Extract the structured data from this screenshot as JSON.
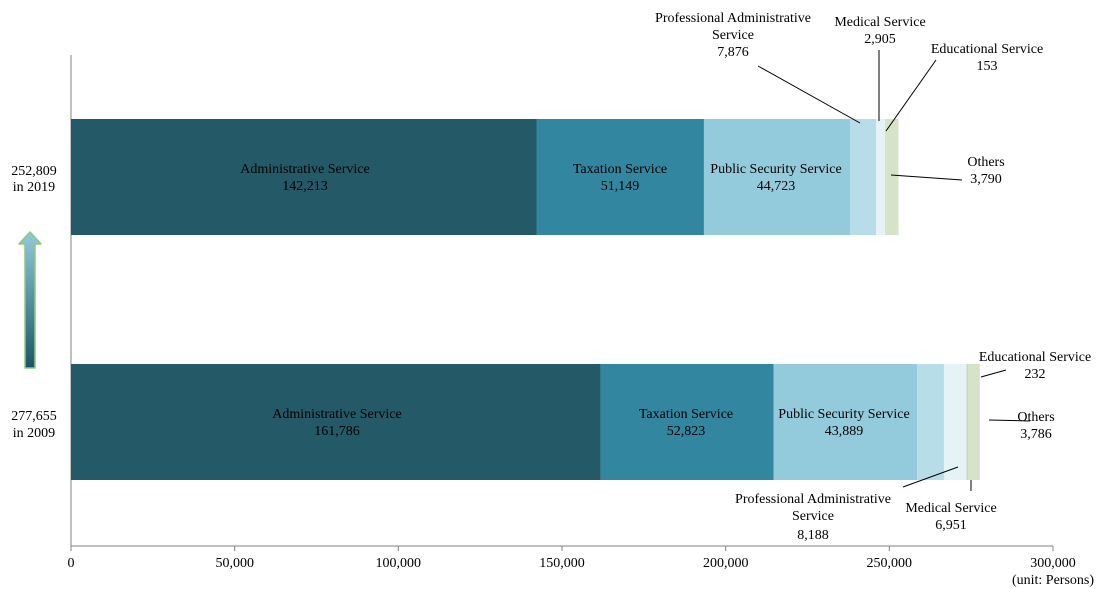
{
  "chart_data": {
    "type": "bar",
    "orientation": "horizontal",
    "stacked": true,
    "unit_label": "(unit: Persons)",
    "xlim": [
      0,
      300000
    ],
    "x_ticks": [
      "0",
      "50,000",
      "100,000",
      "150,000",
      "200,000",
      "250,000",
      "300,000"
    ],
    "x_tick_values": [
      0,
      50000,
      100000,
      150000,
      200000,
      250000,
      300000
    ],
    "colors": {
      "Administrative Service": "#245a68",
      "Taxation Service": "#32869f",
      "Public Security Service": "#93cbdc",
      "Professional Administrative Service": "#b7dde8",
      "Medical Service": "#e5f2f6",
      "Educational Service": "#b1c7a8",
      "Others": "#d7e3c9"
    },
    "arrow_colors": {
      "top": "#93cbdc",
      "bottom": "#1e5566",
      "outline": "#8fc77e"
    },
    "bars": [
      {
        "total_label": "252,809",
        "year_label": "in 2019",
        "segments": [
          {
            "name": "Administrative Service",
            "value": 142213,
            "value_label": "142,213"
          },
          {
            "name": "Taxation Service",
            "value": 51149,
            "value_label": "51,149"
          },
          {
            "name": "Public Security Service",
            "value": 44723,
            "value_label": "44,723"
          },
          {
            "name": "Professional Administrative Service",
            "value": 7876,
            "value_label": "7,876",
            "callout": [
              "Professional Administrative",
              "Service",
              "7,876"
            ]
          },
          {
            "name": "Medical Service",
            "value": 2905,
            "value_label": "2,905",
            "callout": [
              "Medical Service",
              "2,905"
            ]
          },
          {
            "name": "Educational Service",
            "value": 153,
            "value_label": "153",
            "callout": [
              "Educational Service",
              "153"
            ]
          },
          {
            "name": "Others",
            "value": 3790,
            "value_label": "3,790",
            "callout": [
              "Others",
              "3,790"
            ]
          }
        ]
      },
      {
        "total_label": "277,655",
        "year_label": "in 2009",
        "segments": [
          {
            "name": "Administrative Service",
            "value": 161786,
            "value_label": "161,786"
          },
          {
            "name": "Taxation Service",
            "value": 52823,
            "value_label": "52,823"
          },
          {
            "name": "Public Security Service",
            "value": 43889,
            "value_label": "43,889"
          },
          {
            "name": "Professional Administrative Service",
            "value": 8188,
            "value_label": "8,188",
            "callout": [
              "Professional Administrative",
              "Service",
              "8,188"
            ]
          },
          {
            "name": "Medical Service",
            "value": 6951,
            "value_label": "6,951",
            "callout": [
              "Medical Service",
              "6,951"
            ]
          },
          {
            "name": "Educational Service",
            "value": 232,
            "value_label": "232",
            "callout": [
              "Educational Service",
              "232"
            ]
          },
          {
            "name": "Others",
            "value": 3786,
            "value_label": "3,786",
            "callout": [
              "Others",
              "3,786"
            ]
          }
        ]
      }
    ]
  }
}
